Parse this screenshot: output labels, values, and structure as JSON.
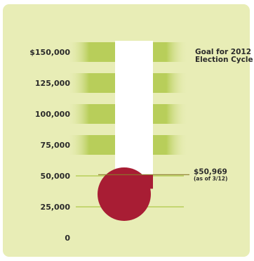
{
  "chart_data": {
    "type": "thermometer",
    "y_ticks": [
      {
        "value": 150000,
        "label": "$150,000"
      },
      {
        "value": 125000,
        "label": "125,000"
      },
      {
        "value": 100000,
        "label": "100,000"
      },
      {
        "value": 75000,
        "label": "75,000"
      },
      {
        "value": 50000,
        "label": "50,000"
      },
      {
        "value": 25000,
        "label": "25,000"
      },
      {
        "value": 0,
        "label": "0"
      }
    ],
    "ylim": [
      0,
      150000
    ],
    "goal": {
      "value": 150000,
      "label_line1": "Goal for 2012",
      "label_line2": "Election Cycle"
    },
    "current": {
      "value": 50969,
      "label": "$50,969",
      "sublabel": "(as of 3/12)"
    },
    "colors": {
      "panel": "#e8edb6",
      "band": "#b8ce5a",
      "tube": "#ffffff",
      "mercury": "#a81d34",
      "marker_line": "#8a7a2a",
      "text": "#2b2b2b"
    }
  }
}
